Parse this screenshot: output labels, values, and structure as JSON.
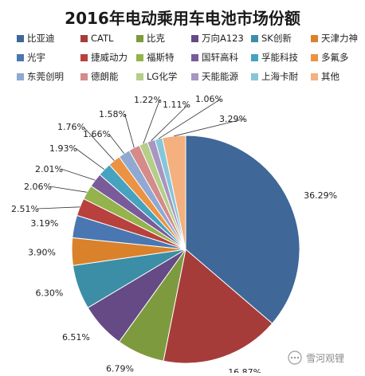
{
  "chart_data": {
    "type": "pie",
    "title": "2016年电动乘用车电池市场份额",
    "legend_position": "top",
    "slices": [
      {
        "label": "比亚迪",
        "value": 36.29,
        "display": "36.29%",
        "color": "#3f6797"
      },
      {
        "label": "CATL",
        "value": 16.87,
        "display": "16.87%",
        "color": "#a63c3a"
      },
      {
        "label": "比克",
        "value": 6.79,
        "display": "6.79%",
        "color": "#7e9a3e"
      },
      {
        "label": "万向A123",
        "value": 6.51,
        "display": "6.51%",
        "color": "#654a85"
      },
      {
        "label": "SK创新",
        "value": 6.3,
        "display": "6.30%",
        "color": "#3b8ea5"
      },
      {
        "label": "天津力神",
        "value": 3.9,
        "display": "3.90%",
        "color": "#d9822b"
      },
      {
        "label": "光宇",
        "value": 3.19,
        "display": "3.19%",
        "color": "#4a77b1"
      },
      {
        "label": "捷威动力",
        "value": 2.51,
        "display": "2.51%",
        "color": "#b8413e"
      },
      {
        "label": "福斯特",
        "value": 2.06,
        "display": "2.06%",
        "color": "#94b34c"
      },
      {
        "label": "国轩高科",
        "value": 2.01,
        "display": "2.01%",
        "color": "#7a5b9a"
      },
      {
        "label": "孚能科技",
        "value": 1.93,
        "display": "1.93%",
        "color": "#46a3bf"
      },
      {
        "label": "多氟多",
        "value": 1.76,
        "display": "1.76%",
        "color": "#eb9343"
      },
      {
        "label": "东莞创明",
        "value": 1.66,
        "display": "1.66%",
        "color": "#8fa9d2"
      },
      {
        "label": "德朗能",
        "value": 1.58,
        "display": "1.58%",
        "color": "#d48b89"
      },
      {
        "label": "LG化学",
        "value": 1.22,
        "display": "1.22%",
        "color": "#b5ce89"
      },
      {
        "label": "天能能源",
        "value": 1.11,
        "display": "1.11%",
        "color": "#a796c0"
      },
      {
        "label": "上海卡耐",
        "value": 1.06,
        "display": "1.06%",
        "color": "#86c6da"
      },
      {
        "label": "其他",
        "value": 3.29,
        "display": "3.29%",
        "color": "#f4b07f"
      }
    ]
  },
  "watermark": "雪河观锂"
}
